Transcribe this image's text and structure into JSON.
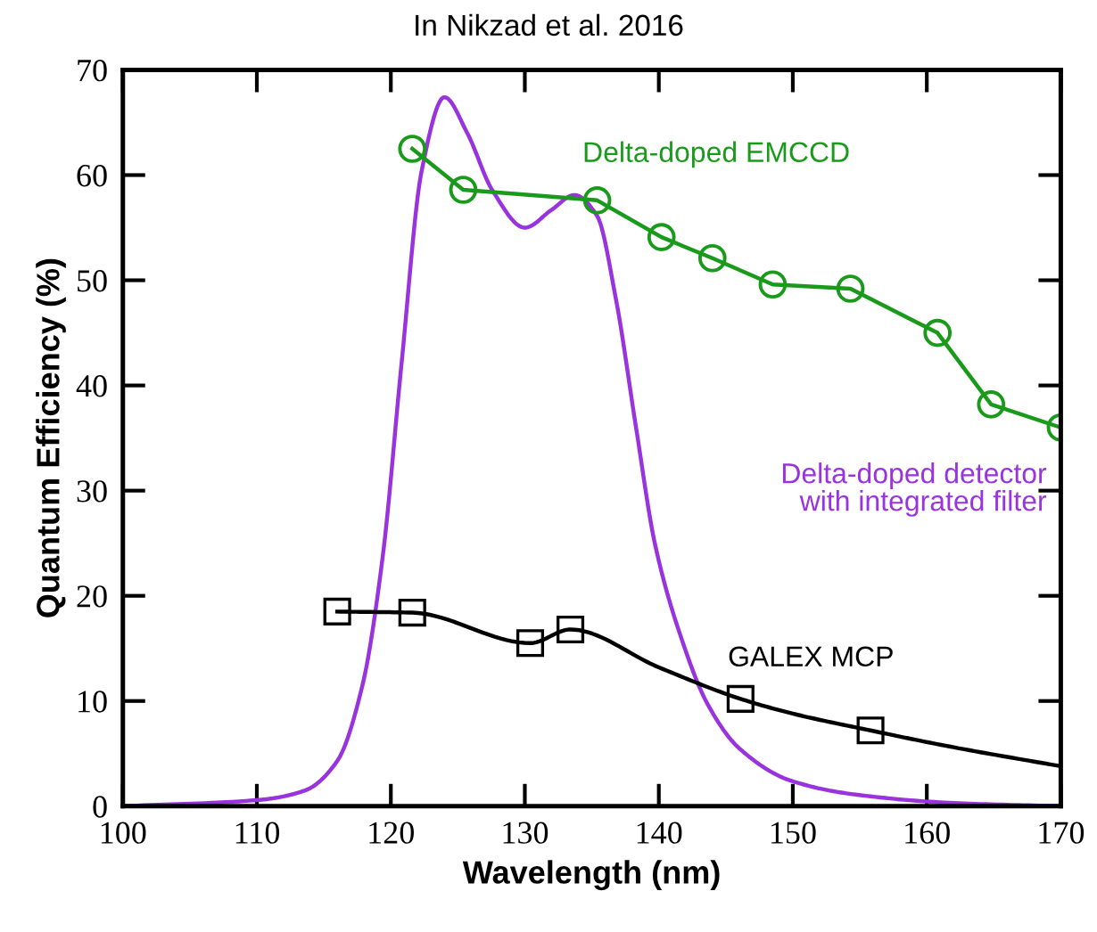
{
  "chart_data": {
    "type": "line",
    "title": "In Nikzad et al. 2016",
    "xlabel": "Wavelength (nm)",
    "ylabel": "Quantum Efficiency (%)",
    "xlim": [
      100,
      170
    ],
    "ylim": [
      0,
      70
    ],
    "xticks": [
      100,
      110,
      120,
      130,
      140,
      150,
      160,
      170
    ],
    "yticks": [
      0,
      10,
      20,
      30,
      40,
      50,
      60,
      70
    ],
    "grid": false,
    "legend": false,
    "series": [
      {
        "color": "#9933dd",
        "marker": "none",
        "x": [
          100,
          110.2,
          113.6,
          116,
          117.9,
          119.4,
          120.8,
          122.3,
          124.0,
          125.7,
          127.6,
          130.0,
          132.0,
          133.7,
          135.4,
          136.8,
          138.3,
          139.7,
          141.7,
          143.6,
          146.0,
          149.9,
          154.7,
          162.0,
          170
        ],
        "values": [
          0,
          0.6,
          1.5,
          4.3,
          11.6,
          23.8,
          42.1,
          60.4,
          67.4,
          64.0,
          58.5,
          55.0,
          56.7,
          58.1,
          56.1,
          48.2,
          36.0,
          25.0,
          15.9,
          9.8,
          5.5,
          2.4,
          1.1,
          0.3,
          0
        ]
      },
      {
        "color": "#1a9a1a",
        "marker": "circle",
        "x": [
          121.6,
          125.4,
          135.4,
          140.2,
          144.0,
          148.5,
          154.3,
          160.8,
          164.8,
          170
        ],
        "values": [
          62.5,
          58.6,
          57.6,
          54.1,
          52.1,
          49.6,
          49.2,
          45.0,
          38.2,
          36.0
        ]
      },
      {
        "color": "#000000",
        "marker": "none",
        "x": [
          116.0,
          121.6,
          130.4,
          133.4,
          140,
          146.1,
          150,
          155.8,
          162,
          170
        ],
        "values": [
          18.5,
          18.4,
          15.5,
          16.8,
          13.2,
          10.2,
          8.8,
          7.2,
          5.6,
          3.8
        ]
      },
      {
        "type": "scatter",
        "color": "#000000",
        "marker": "square",
        "x": [
          116.0,
          121.6,
          130.4,
          133.4,
          146.1,
          155.8
        ],
        "values": [
          18.5,
          18.4,
          15.5,
          16.8,
          10.2,
          7.2
        ]
      }
    ],
    "annotations": [
      "Delta-doped EMCCD",
      "Delta-doped detector\nwith integrated filter",
      "GALEX MCP"
    ]
  }
}
